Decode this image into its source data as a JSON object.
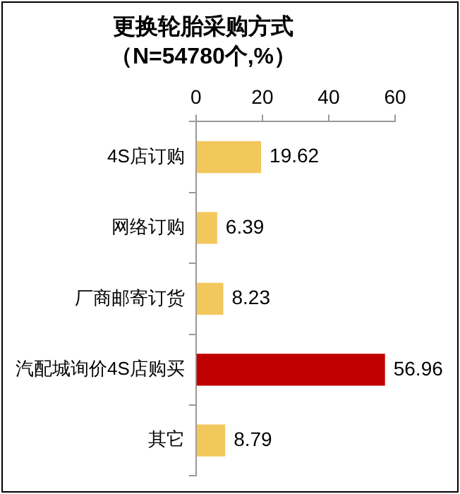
{
  "chart_data": {
    "type": "bar",
    "orientation": "horizontal",
    "title": "更换轮胎采购方式",
    "subtitle": "（N=54780个,%）",
    "categories": [
      "4S店订购",
      "网络订购",
      "厂商邮寄订货",
      "汽配城询价4S店购买",
      "其它"
    ],
    "values": [
      19.62,
      6.39,
      8.23,
      56.96,
      8.79
    ],
    "colors": [
      "#f2c75c",
      "#f2c75c",
      "#f2c75c",
      "#c00000",
      "#f2c75c"
    ],
    "xlim": [
      0,
      60
    ],
    "xticks": [
      0,
      20,
      40,
      60
    ],
    "grid": false,
    "legend": false,
    "data_labels": true
  }
}
